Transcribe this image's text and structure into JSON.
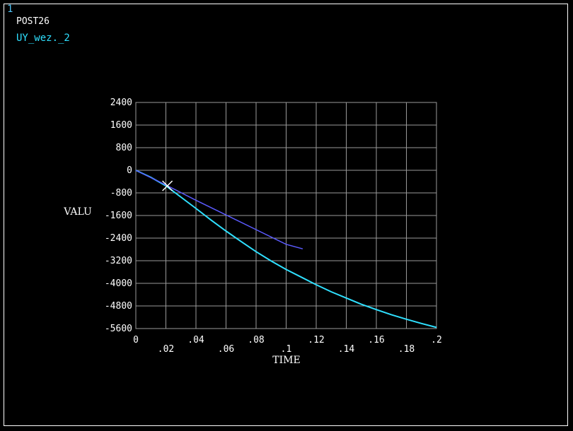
{
  "header": {
    "window_number": "1",
    "post_label": "POST26",
    "series_label": "UY_wez._2"
  },
  "colors": {
    "background": "#000000",
    "grid": "#9a9a9a",
    "text": "#ffffff",
    "series_main": "#2fe0ff",
    "series_second": "#5b5bff"
  },
  "chart_data": {
    "type": "line",
    "xlabel": "TIME",
    "ylabel": "VALU",
    "xlim": [
      0,
      0.2
    ],
    "ylim": [
      -5600,
      2400
    ],
    "x_ticks": [
      "0",
      ".02",
      ".04",
      ".06",
      ".08",
      ".1",
      ".12",
      ".14",
      ".16",
      ".18",
      ".2"
    ],
    "y_ticks": [
      "2400",
      "1600",
      "800",
      "0",
      "-800",
      "-1600",
      "-2400",
      "-3200",
      "-4000",
      "-4800",
      "-5600"
    ],
    "grid": true,
    "series": [
      {
        "color": "#2fe0ff",
        "x": [
          0,
          0.01,
          0.02,
          0.03,
          0.04,
          0.05,
          0.06,
          0.07,
          0.08,
          0.09,
          0.1,
          0.11,
          0.12,
          0.13,
          0.14,
          0.15,
          0.16,
          0.17,
          0.18,
          0.19,
          0.2
        ],
        "y": [
          0,
          -250,
          -550,
          -950,
          -1350,
          -1760,
          -2150,
          -2520,
          -2880,
          -3210,
          -3510,
          -3780,
          -4050,
          -4300,
          -4520,
          -4740,
          -4930,
          -5110,
          -5270,
          -5420,
          -5560
        ]
      },
      {
        "color": "#5b5bff",
        "x": [
          0,
          0.02,
          0.04,
          0.06,
          0.08,
          0.1,
          0.111
        ],
        "y": [
          0,
          -520,
          -1060,
          -1580,
          -2100,
          -2620,
          -2780
        ]
      }
    ],
    "marker": {
      "x": 0.021,
      "y": -550,
      "symbol": "X"
    }
  }
}
